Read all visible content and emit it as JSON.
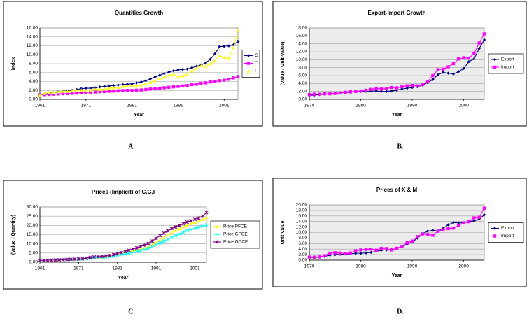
{
  "chart_data": [
    {
      "type": "line",
      "title": "Quantities Growth",
      "x_label": "Year",
      "y_label": "Index",
      "legend": "right",
      "grid": true,
      "plot_background": "#ffffff",
      "x": [
        1961,
        1962,
        1963,
        1964,
        1965,
        1966,
        1967,
        1968,
        1969,
        1970,
        1971,
        1972,
        1973,
        1974,
        1975,
        1976,
        1977,
        1978,
        1979,
        1980,
        1981,
        1982,
        1983,
        1984,
        1985,
        1986,
        1987,
        1988,
        1989,
        1990,
        1991,
        1992,
        1993,
        1994,
        1995,
        1996,
        1997,
        1998,
        1999,
        2000,
        2001,
        2002,
        2003,
        2004
      ],
      "xlim": [
        1961,
        2004
      ],
      "xticks": [
        1961,
        1971,
        1981,
        1991,
        2001
      ],
      "ylim": [
        0,
        16
      ],
      "yticks": [
        {
          "value": 0,
          "label": "0.00"
        },
        {
          "value": 2,
          "label": "2.00"
        },
        {
          "value": 4,
          "label": "4.00"
        },
        {
          "value": 6,
          "label": "6.00"
        },
        {
          "value": 8,
          "label": "8.00"
        },
        {
          "value": 10,
          "label": "10.00"
        },
        {
          "value": 12,
          "label": "12.00"
        },
        {
          "value": 14,
          "label": "14.00"
        },
        {
          "value": 16,
          "label": "16.00"
        }
      ],
      "series": [
        {
          "name": "G",
          "color": "#000080",
          "marker": "diamond",
          "values": [
            1.0,
            1.2,
            1.4,
            1.5,
            1.7,
            1.8,
            1.9,
            2.0,
            2.2,
            2.4,
            2.5,
            2.5,
            2.6,
            2.8,
            2.9,
            3.0,
            3.1,
            3.2,
            3.3,
            3.4,
            3.5,
            3.7,
            3.9,
            4.2,
            4.6,
            5.0,
            5.4,
            5.8,
            6.1,
            6.4,
            6.6,
            6.7,
            6.8,
            7.1,
            7.4,
            7.7,
            8.2,
            9.0,
            10.2,
            11.8,
            11.9,
            12.0,
            12.2,
            13.0
          ]
        },
        {
          "name": "C",
          "color": "#ff00ff",
          "marker": "square",
          "values": [
            1.0,
            1.05,
            1.1,
            1.15,
            1.2,
            1.25,
            1.3,
            1.35,
            1.4,
            1.5,
            1.55,
            1.6,
            1.65,
            1.7,
            1.75,
            1.8,
            1.85,
            1.9,
            1.95,
            2.0,
            2.0,
            2.05,
            2.1,
            2.2,
            2.3,
            2.4,
            2.5,
            2.6,
            2.7,
            2.8,
            2.9,
            3.0,
            3.1,
            3.3,
            3.4,
            3.6,
            3.7,
            3.9,
            4.0,
            4.2,
            4.3,
            4.5,
            4.8,
            5.1
          ]
        },
        {
          "name": "I",
          "color": "#ffff00",
          "marker": "triangle",
          "values": [
            1.0,
            1.3,
            1.5,
            1.6,
            1.7,
            1.8,
            1.8,
            1.9,
            2.0,
            2.1,
            2.0,
            2.1,
            2.3,
            2.2,
            2.3,
            2.5,
            2.6,
            2.7,
            2.9,
            3.0,
            3.0,
            3.0,
            3.2,
            3.5,
            3.8,
            4.2,
            4.6,
            5.0,
            5.4,
            5.6,
            5.0,
            5.3,
            5.6,
            6.4,
            7.0,
            7.6,
            7.4,
            8.0,
            8.6,
            9.8,
            9.4,
            9.2,
            11.6,
            15.5
          ]
        }
      ]
    },
    {
      "type": "line",
      "title": "Export-Import Growth",
      "x_label": "Year",
      "y_label": "(Value / Unit-value)",
      "legend": "right",
      "grid": true,
      "plot_background": "#ececec",
      "x": [
        1970,
        1971,
        1972,
        1973,
        1974,
        1975,
        1976,
        1977,
        1978,
        1979,
        1980,
        1981,
        1982,
        1983,
        1984,
        1985,
        1986,
        1987,
        1988,
        1989,
        1990,
        1991,
        1992,
        1993,
        1994,
        1995,
        1996,
        1997,
        1998,
        1999,
        2000,
        2001,
        2002,
        2003,
        2004
      ],
      "xlim": [
        1970,
        2004
      ],
      "xticks": [
        1970,
        1980,
        1990,
        2000
      ],
      "ylim": [
        0,
        18
      ],
      "yticks": [
        {
          "value": 0,
          "label": "0.00"
        },
        {
          "value": 2,
          "label": "2.00"
        },
        {
          "value": 4,
          "label": "4.00"
        },
        {
          "value": 6,
          "label": "6.00"
        },
        {
          "value": 8,
          "label": "8.00"
        },
        {
          "value": 10,
          "label": "10.00"
        },
        {
          "value": 12,
          "label": "12.00"
        },
        {
          "value": 14,
          "label": "14.00"
        },
        {
          "value": 16,
          "label": "16.00"
        },
        {
          "value": 18,
          "label": "18.00"
        }
      ],
      "series": [
        {
          "name": "Export",
          "color": "#000080",
          "marker": "diamond",
          "values": [
            1.0,
            1.1,
            1.2,
            1.3,
            1.4,
            1.5,
            1.6,
            1.7,
            1.8,
            1.9,
            2.0,
            2.0,
            2.1,
            2.1,
            2.0,
            2.0,
            2.1,
            2.3,
            2.6,
            2.8,
            3.0,
            3.2,
            3.6,
            4.2,
            5.0,
            6.2,
            6.8,
            6.6,
            6.4,
            7.0,
            7.8,
            9.5,
            10.2,
            12.8,
            15.0
          ]
        },
        {
          "name": "Import",
          "color": "#ff00ff",
          "marker": "square",
          "values": [
            1.2,
            1.3,
            1.3,
            1.4,
            1.4,
            1.5,
            1.6,
            1.8,
            1.9,
            2.0,
            2.1,
            2.3,
            2.5,
            2.8,
            2.6,
            2.7,
            3.0,
            2.9,
            3.2,
            3.4,
            3.5,
            3.4,
            3.7,
            4.5,
            6.0,
            7.5,
            7.6,
            8.2,
            9.0,
            10.2,
            10.5,
            10.4,
            11.5,
            14.2,
            16.5
          ]
        }
      ]
    },
    {
      "type": "line",
      "title": "Prices (Implicit) of C,G,I",
      "x_label": "Year",
      "y_label": "(Value / Quantity)",
      "legend": "right",
      "grid": true,
      "plot_background": "#ffffff",
      "x": [
        1961,
        1962,
        1963,
        1964,
        1965,
        1966,
        1967,
        1968,
        1969,
        1970,
        1971,
        1972,
        1973,
        1974,
        1975,
        1976,
        1977,
        1978,
        1979,
        1980,
        1981,
        1982,
        1983,
        1984,
        1985,
        1986,
        1987,
        1988,
        1989,
        1990,
        1991,
        1992,
        1993,
        1994,
        1995,
        1996,
        1997,
        1998,
        1999,
        2000,
        2001,
        2002,
        2003,
        2004
      ],
      "xlim": [
        1961,
        2004
      ],
      "xticks": [
        1961,
        1971,
        1981,
        1991,
        2001
      ],
      "ylim": [
        0,
        30
      ],
      "yticks": [
        {
          "value": 0,
          "label": "0.00"
        },
        {
          "value": 5,
          "label": "5.00"
        },
        {
          "value": 10,
          "label": "10.00"
        },
        {
          "value": 15,
          "label": "15.00"
        },
        {
          "value": 20,
          "label": "20.00"
        },
        {
          "value": 25,
          "label": "25.00"
        },
        {
          "value": 30,
          "label": "30.00"
        }
      ],
      "series": [
        {
          "name": "Price PFCE",
          "color": "#ffff00",
          "marker": "triangle",
          "values": [
            1.0,
            1.05,
            1.1,
            1.15,
            1.2,
            1.3,
            1.4,
            1.5,
            1.55,
            1.6,
            1.7,
            1.8,
            2.0,
            2.4,
            2.6,
            2.6,
            2.8,
            3.0,
            3.3,
            3.8,
            4.3,
            4.7,
            5.2,
            5.6,
            6.0,
            6.5,
            7.1,
            7.8,
            8.5,
            9.5,
            11.0,
            12.3,
            13.5,
            14.8,
            16.0,
            17.2,
            18.2,
            19.3,
            20.2,
            21.0,
            21.7,
            22.4,
            23.2,
            24.3
          ]
        },
        {
          "name": "Price GFCE",
          "color": "#00ffff",
          "marker": "x",
          "values": [
            1.0,
            1.05,
            1.1,
            1.15,
            1.2,
            1.3,
            1.35,
            1.4,
            1.5,
            1.55,
            1.6,
            1.7,
            1.9,
            2.2,
            2.5,
            2.6,
            2.7,
            2.8,
            3.0,
            3.3,
            3.7,
            4.1,
            4.5,
            4.9,
            5.3,
            5.8,
            6.3,
            6.9,
            7.6,
            8.4,
            9.5,
            10.5,
            11.5,
            12.5,
            13.5,
            14.4,
            15.3,
            16.3,
            17.2,
            17.9,
            18.5,
            19.0,
            19.6,
            20.2
          ]
        },
        {
          "name": "Price GDCF",
          "color": "#800080",
          "marker": "star",
          "values": [
            1.0,
            1.05,
            1.1,
            1.15,
            1.2,
            1.3,
            1.4,
            1.5,
            1.6,
            1.7,
            1.8,
            1.9,
            2.2,
            2.6,
            2.9,
            3.0,
            3.2,
            3.4,
            3.7,
            4.2,
            4.8,
            5.3,
            5.8,
            6.5,
            7.2,
            7.8,
            8.5,
            9.3,
            10.2,
            11.5,
            13.0,
            14.5,
            15.8,
            17.0,
            18.3,
            19.2,
            20.0,
            21.0,
            21.8,
            22.5,
            23.3,
            24.0,
            25.0,
            27.0
          ]
        }
      ]
    },
    {
      "type": "line",
      "title": "Prices of X & M",
      "x_label": "Year",
      "y_label": "Unit Value",
      "legend": "right",
      "grid": true,
      "plot_background": "#ececec",
      "x": [
        1970,
        1971,
        1972,
        1973,
        1974,
        1975,
        1976,
        1977,
        1978,
        1979,
        1980,
        1981,
        1982,
        1983,
        1984,
        1985,
        1986,
        1987,
        1988,
        1989,
        1990,
        1991,
        1992,
        1993,
        1994,
        1995,
        1996,
        1997,
        1998,
        1999,
        2000,
        2001,
        2002,
        2003,
        2004
      ],
      "xlim": [
        1970,
        2004
      ],
      "xticks": [
        1970,
        1980,
        1990,
        2000
      ],
      "ylim": [
        0,
        20
      ],
      "yticks": [
        {
          "value": 0,
          "label": "0.00"
        },
        {
          "value": 2,
          "label": "2.00"
        },
        {
          "value": 4,
          "label": "4.00"
        },
        {
          "value": 6,
          "label": "6.00"
        },
        {
          "value": 8,
          "label": "8.00"
        },
        {
          "value": 10,
          "label": "10.00"
        },
        {
          "value": 12,
          "label": "12.00"
        },
        {
          "value": 14,
          "label": "14.00"
        },
        {
          "value": 16,
          "label": "16.00"
        },
        {
          "value": 18,
          "label": "18.00"
        },
        {
          "value": 20,
          "label": "20.00"
        }
      ],
      "series": [
        {
          "name": "Export",
          "color": "#000080",
          "marker": "diamond",
          "values": [
            1.0,
            1.0,
            1.1,
            1.3,
            1.8,
            2.0,
            2.1,
            2.2,
            2.3,
            2.5,
            2.5,
            2.6,
            2.8,
            3.2,
            3.6,
            3.7,
            3.8,
            4.2,
            4.8,
            5.8,
            6.5,
            8.0,
            9.5,
            10.5,
            10.8,
            10.5,
            11.5,
            12.8,
            13.6,
            13.5,
            13.5,
            14.0,
            14.2,
            14.8,
            16.4
          ]
        },
        {
          "name": "Import",
          "color": "#ff00ff",
          "marker": "square",
          "values": [
            1.1,
            1.1,
            1.2,
            1.6,
            2.5,
            2.7,
            2.6,
            2.4,
            2.6,
            3.4,
            3.7,
            3.9,
            4.0,
            3.6,
            4.3,
            4.2,
            3.7,
            4.3,
            5.0,
            6.3,
            6.9,
            8.5,
            9.5,
            9.3,
            9.0,
            10.5,
            11.0,
            11.4,
            11.6,
            12.5,
            13.5,
            13.9,
            15.3,
            15.5,
            18.8
          ]
        }
      ]
    }
  ],
  "captions": [
    "A.",
    "B.",
    "C.",
    "D."
  ]
}
